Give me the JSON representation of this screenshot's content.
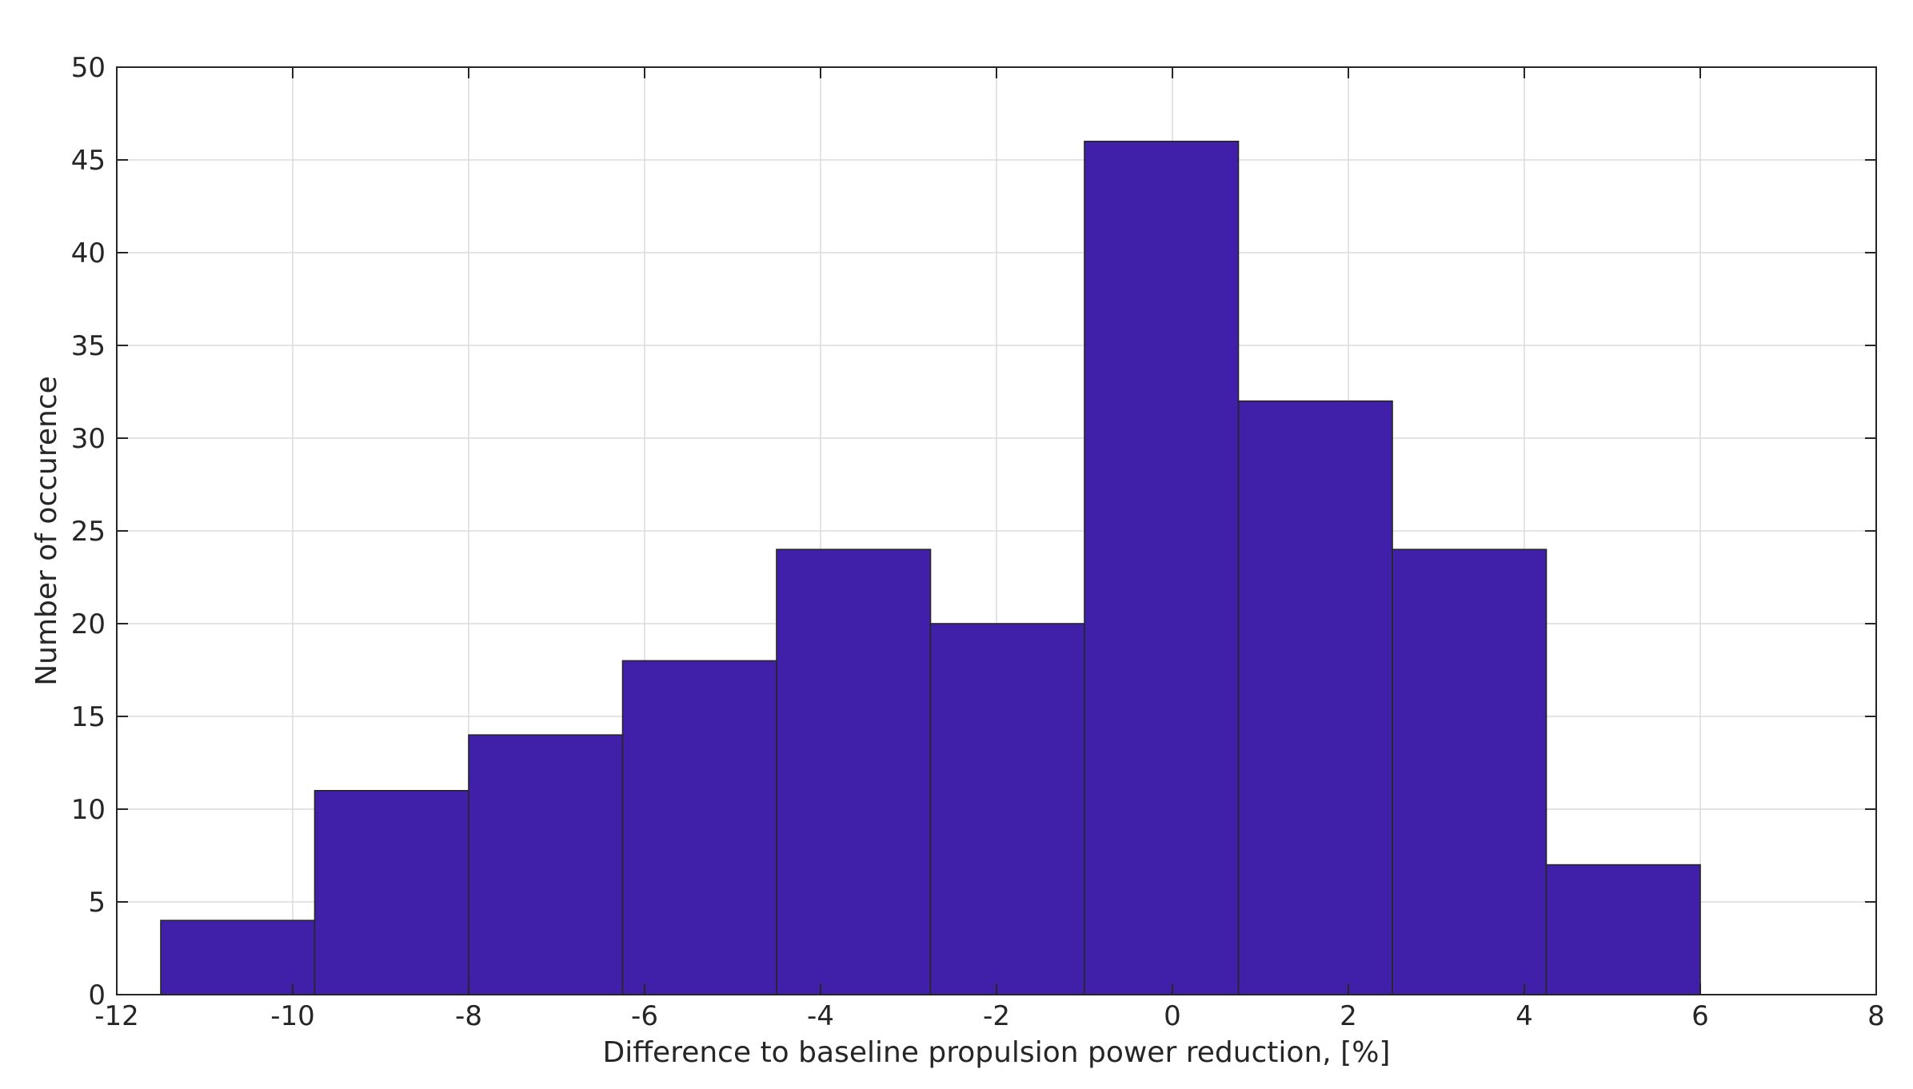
{
  "chart_data": {
    "type": "bar",
    "subtype": "histogram",
    "bin_edges": [
      -11.5,
      -9.75,
      -8.0,
      -6.25,
      -4.5,
      -2.75,
      -1.0,
      0.75,
      2.5,
      4.25,
      6.0
    ],
    "counts": [
      4,
      11,
      14,
      18,
      24,
      20,
      46,
      32,
      24,
      7
    ],
    "xlabel": "Difference to baseline propulsion power reduction, [%]",
    "ylabel": "Number of occurence",
    "xlim": [
      -12,
      8
    ],
    "ylim": [
      0,
      50
    ],
    "xticks": [
      -12,
      -10,
      -8,
      -6,
      -4,
      -2,
      0,
      2,
      4,
      6,
      8
    ],
    "yticks": [
      0,
      5,
      10,
      15,
      20,
      25,
      30,
      35,
      40,
      45,
      50
    ],
    "grid": true,
    "bar_color": "#4020a8",
    "edge_color": "#262626"
  }
}
